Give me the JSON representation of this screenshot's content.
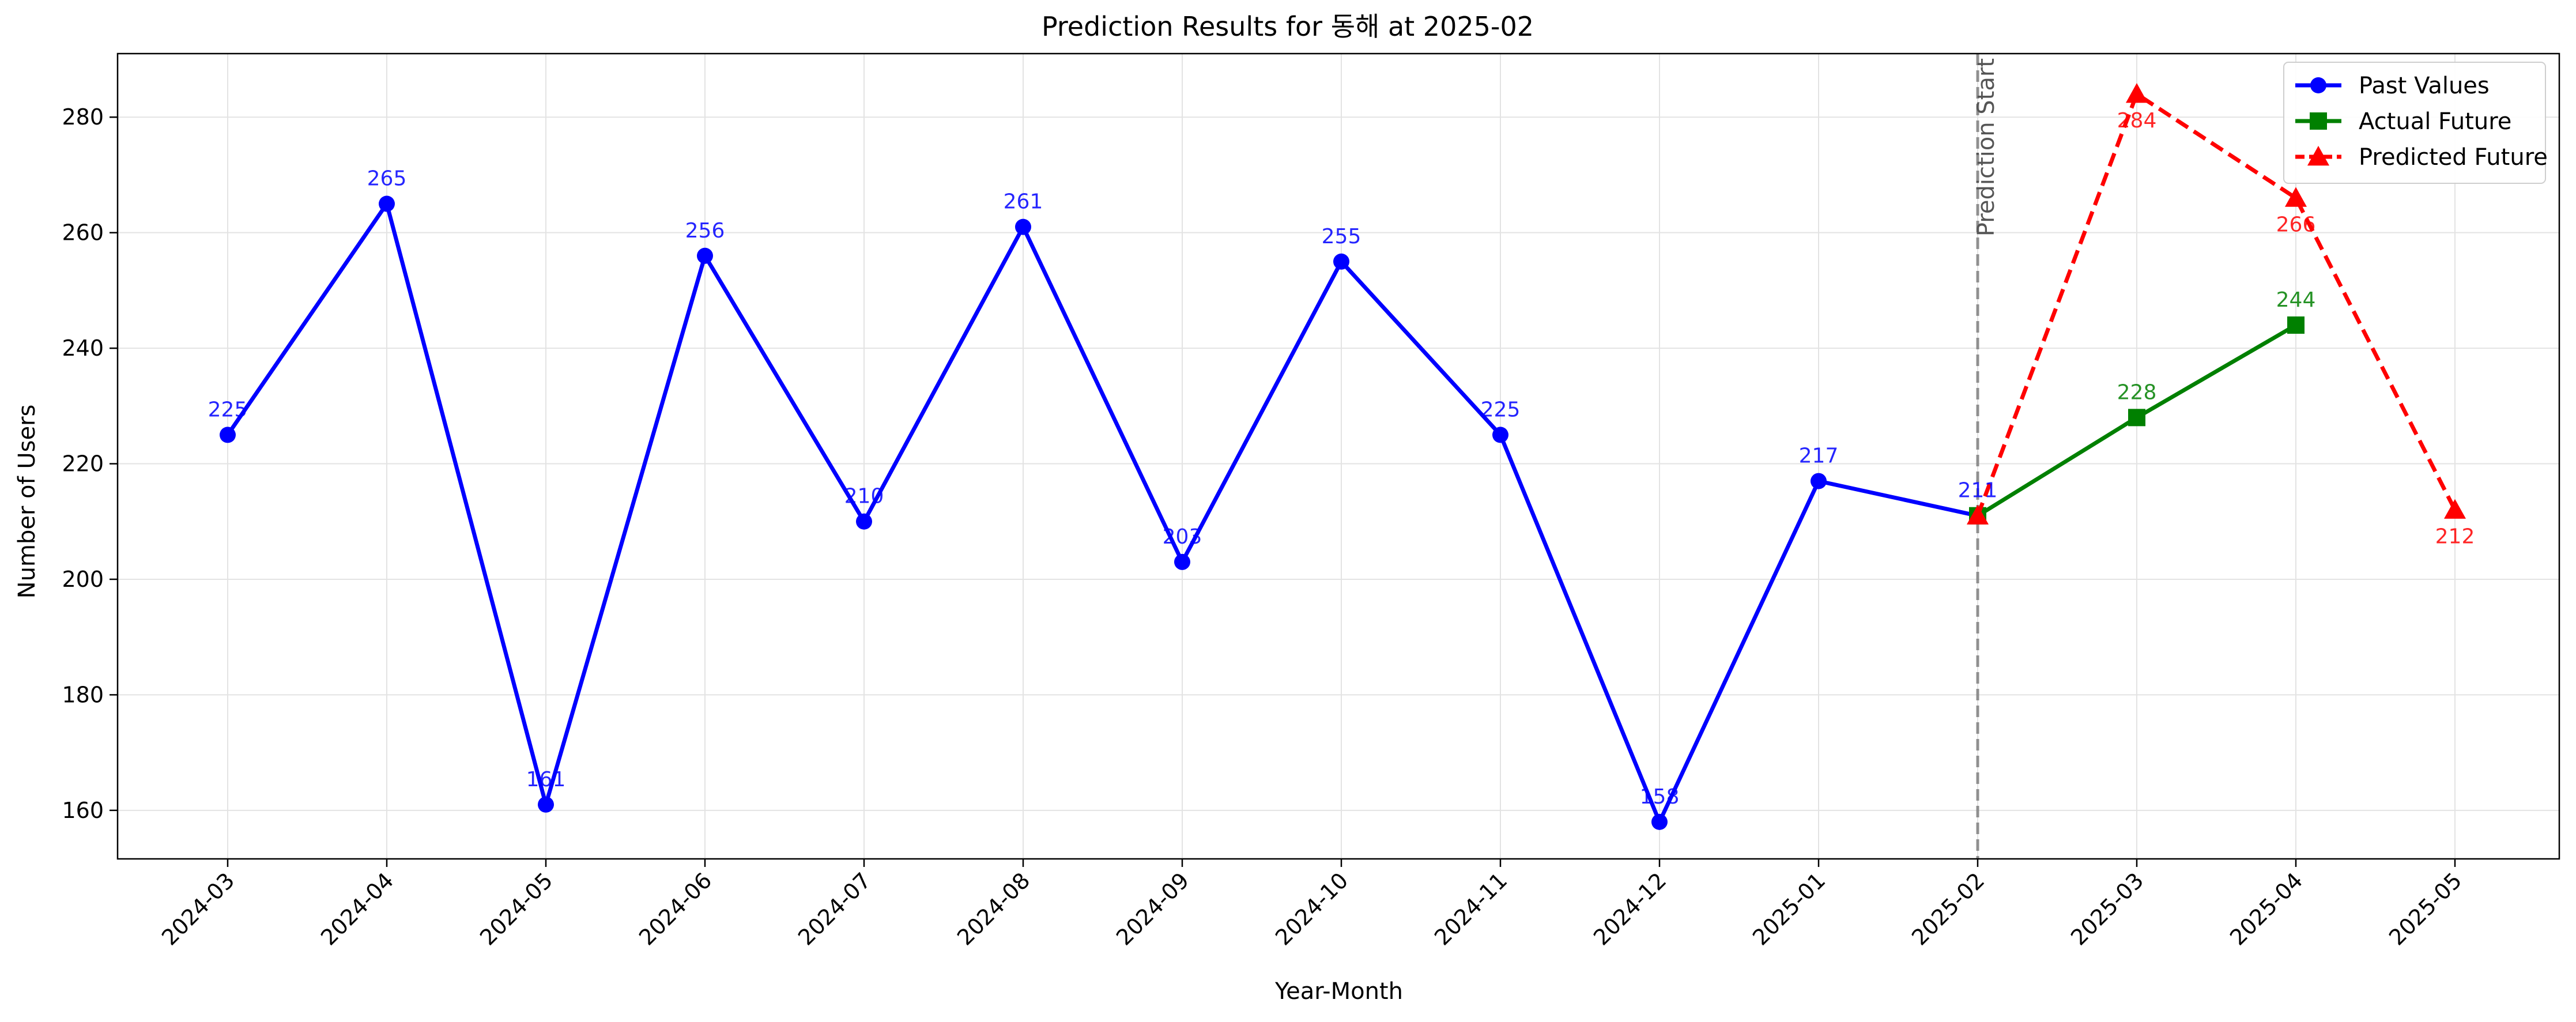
{
  "chart_data": {
    "type": "line",
    "title": "Prediction Results for 동해 at 2025-02",
    "xlabel": "Year-Month",
    "ylabel": "Number of Users",
    "categories": [
      "2024-03",
      "2024-04",
      "2024-05",
      "2024-06",
      "2024-07",
      "2024-08",
      "2024-09",
      "2024-10",
      "2024-11",
      "2024-12",
      "2025-01",
      "2025-02",
      "2025-03",
      "2025-04",
      "2025-05"
    ],
    "ylim": [
      151.6,
      291.0
    ],
    "yticks": [
      160,
      180,
      200,
      220,
      240,
      260,
      280
    ],
    "grid": true,
    "legend_position": "top-right",
    "series": [
      {
        "name": "Past Values",
        "color": "#0000ff",
        "marker": "circle",
        "dash": "solid",
        "x": [
          "2024-03",
          "2024-04",
          "2024-05",
          "2024-06",
          "2024-07",
          "2024-08",
          "2024-09",
          "2024-10",
          "2024-11",
          "2024-12",
          "2025-01",
          "2025-02"
        ],
        "values": [
          225,
          265,
          161,
          256,
          210,
          261,
          203,
          255,
          225,
          158,
          217,
          211
        ],
        "labels": [
          "225",
          "265",
          "161",
          "256",
          "210",
          "261",
          "203",
          "255",
          "225",
          "158",
          "217",
          "211"
        ]
      },
      {
        "name": "Actual Future",
        "color": "#008000",
        "marker": "square",
        "dash": "solid",
        "x": [
          "2025-02",
          "2025-03",
          "2025-04"
        ],
        "values": [
          211,
          228,
          244
        ],
        "labels": [
          "",
          "228",
          "244"
        ]
      },
      {
        "name": "Predicted Future",
        "color": "#ff0000",
        "marker": "triangle",
        "dash": "dashed",
        "x": [
          "2025-02",
          "2025-03",
          "2025-04",
          "2025-05"
        ],
        "values": [
          211,
          284,
          266,
          212
        ],
        "labels": [
          "",
          "284",
          "266",
          "212"
        ]
      }
    ],
    "annotations": [
      {
        "type": "vline",
        "x": "2025-02",
        "label": "Prediction Start",
        "color": "#808080"
      }
    ]
  }
}
